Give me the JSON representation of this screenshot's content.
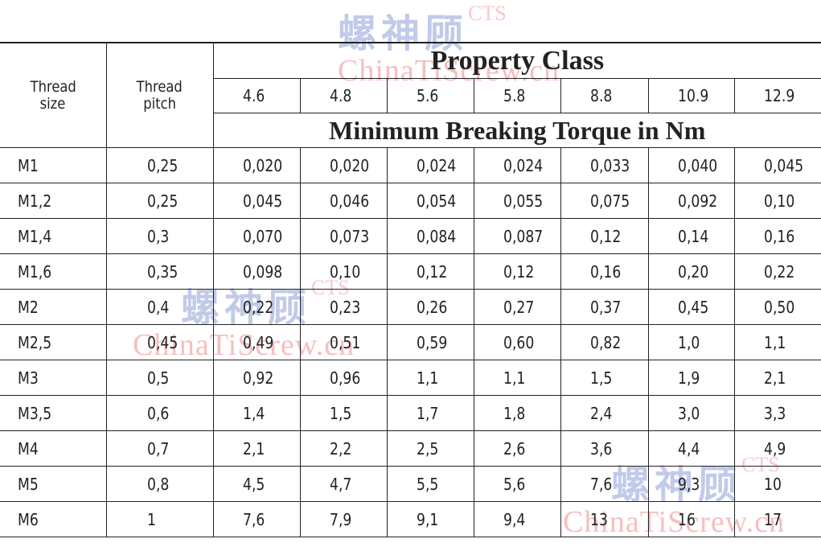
{
  "table": {
    "header_thread_size": [
      "Thread",
      "size"
    ],
    "header_thread_pitch": [
      "Thread",
      "pitch"
    ],
    "title": "Property Class",
    "classes": [
      "4.6",
      "4.8",
      "5.6",
      "5.8",
      "8.8",
      "10.9",
      "12.9"
    ],
    "subtitle": "Minimum Breaking Torque in Nm",
    "rows": [
      {
        "size": "M1",
        "pitch": "0,25",
        "values": [
          "0,020",
          "0,020",
          "0,024",
          "0,024",
          "0,033",
          "0,040",
          "0,045"
        ]
      },
      {
        "size": "M1,2",
        "pitch": "0,25",
        "values": [
          "0,045",
          "0,046",
          "0,054",
          "0,055",
          "0,075",
          "0,092",
          "0,10"
        ]
      },
      {
        "size": "M1,4",
        "pitch": "0,3",
        "values": [
          "0,070",
          "0,073",
          "0,084",
          "0,087",
          "0,12",
          "0,14",
          "0,16"
        ]
      },
      {
        "size": "M1,6",
        "pitch": "0,35",
        "values": [
          "0,098",
          "0,10",
          "0,12",
          "0,12",
          "0,16",
          "0,20",
          "0,22"
        ]
      },
      {
        "size": "M2",
        "pitch": "0,4",
        "values": [
          "0,22",
          "0,23",
          "0,26",
          "0,27",
          "0,37",
          "0,45",
          "0,50"
        ]
      },
      {
        "size": "M2,5",
        "pitch": "0,45",
        "values": [
          "0,49",
          "0,51",
          "0,59",
          "0,60",
          "0,82",
          "1,0",
          "1,1"
        ]
      },
      {
        "size": "M3",
        "pitch": "0,5",
        "values": [
          "0,92",
          "0,96",
          "1,1",
          "1,1",
          "1,5",
          "1,9",
          "2,1"
        ]
      },
      {
        "size": "M3,5",
        "pitch": "0,6",
        "values": [
          "1,4",
          "1,5",
          "1,7",
          "1,8",
          "2,4",
          "3,0",
          "3,3"
        ]
      },
      {
        "size": "M4",
        "pitch": "0,7",
        "values": [
          "2,1",
          "2,2",
          "2,5",
          "2,6",
          "3,6",
          "4,4",
          "4,9"
        ]
      },
      {
        "size": "M5",
        "pitch": "0,8",
        "values": [
          "4,5",
          "4,7",
          "5,5",
          "5,6",
          "7,6",
          "9,3",
          "10"
        ]
      },
      {
        "size": "M6",
        "pitch": "1",
        "values": [
          "7,6",
          "7,9",
          "9,1",
          "9,4",
          "13",
          "16",
          "17"
        ]
      }
    ]
  },
  "watermark": {
    "cn": "螺神顾",
    "sup": "CTS",
    "en": "ChinaTiScrew.cn"
  }
}
